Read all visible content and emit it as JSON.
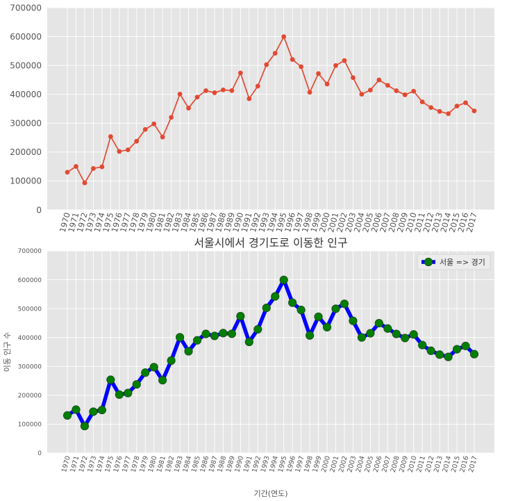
{
  "chart_data": [
    {
      "type": "line",
      "title": "",
      "xlabel": "",
      "ylabel": "",
      "categories": [
        "1970",
        "1971",
        "1972",
        "1973",
        "1974",
        "1975",
        "1976",
        "1977",
        "1978",
        "1979",
        "1980",
        "1981",
        "1982",
        "1983",
        "1984",
        "1985",
        "1986",
        "1987",
        "1988",
        "1989",
        "1990",
        "1991",
        "1992",
        "1993",
        "1994",
        "1995",
        "1996",
        "1997",
        "1998",
        "1999",
        "2000",
        "2001",
        "2002",
        "2003",
        "2004",
        "2005",
        "2006",
        "2007",
        "2008",
        "2009",
        "2010",
        "2011",
        "2012",
        "2013",
        "2014",
        "2015",
        "2016",
        "2017"
      ],
      "series": [
        {
          "values": [
            130149,
            150313,
            93333,
            143234,
            149045,
            253705,
            202276,
            207722,
            237684,
            278411,
            297539,
            252073,
            320174,
            400875,
            352238,
            390265,
            412535,
            405495,
            415174,
            412933,
            473889,
            384714,
            428344,
            502584,
            542204,
            599411,
            520566,
            495454,
            407050,
            471841,
            435573,
            499575,
            516765,
            457656,
            400206,
            414621,
            449632,
            431167,
            412408,
            398282,
            410735,
            373771,
            354135,
            340801,
            332785,
            359337,
            370760,
            342433
          ]
        }
      ],
      "ylim": [
        0,
        700000
      ],
      "yticks": [
        0,
        100000,
        200000,
        300000,
        400000,
        500000,
        600000,
        700000
      ],
      "grid": true,
      "style": {
        "line_color": "#e24a33",
        "marker_color": "#e24a33",
        "bg": "#e5e5e5",
        "grid_color": "#ffffff"
      }
    },
    {
      "type": "line",
      "title": "서울시에서 경기도로 이동한 인구",
      "xlabel": "기간(연도)",
      "ylabel": "이동 인구 수",
      "categories": [
        "1970",
        "1971",
        "1972",
        "1973",
        "1974",
        "1975",
        "1976",
        "1977",
        "1978",
        "1979",
        "1980",
        "1981",
        "1982",
        "1983",
        "1984",
        "1985",
        "1986",
        "1987",
        "1988",
        "1989",
        "1990",
        "1991",
        "1992",
        "1993",
        "1994",
        "1995",
        "1996",
        "1997",
        "1998",
        "1999",
        "2000",
        "2001",
        "2002",
        "2003",
        "2004",
        "2005",
        "2006",
        "2007",
        "2008",
        "2009",
        "2010",
        "2011",
        "2012",
        "2013",
        "2014",
        "2015",
        "2016",
        "2017"
      ],
      "series": [
        {
          "name": "서울 => 경기",
          "values": [
            130149,
            150313,
            93333,
            143234,
            149045,
            253705,
            202276,
            207722,
            237684,
            278411,
            297539,
            252073,
            320174,
            400875,
            352238,
            390265,
            412535,
            405495,
            415174,
            412933,
            473889,
            384714,
            428344,
            502584,
            542204,
            599411,
            520566,
            495454,
            407050,
            471841,
            435573,
            499575,
            516765,
            457656,
            400206,
            414621,
            449632,
            431167,
            412408,
            398282,
            410735,
            373771,
            354135,
            340801,
            332785,
            359337,
            370760,
            342433
          ]
        }
      ],
      "ylim": [
        0,
        700000
      ],
      "yticks": [
        0,
        100000,
        200000,
        300000,
        400000,
        500000,
        600000,
        700000
      ],
      "grid": true,
      "legend": "top-right",
      "style": {
        "line_color": "#0000ff",
        "marker_color": "#008000",
        "marker_edge": "#1f4e1f",
        "bg": "#e5e5e5",
        "grid_color": "#ffffff"
      }
    }
  ]
}
